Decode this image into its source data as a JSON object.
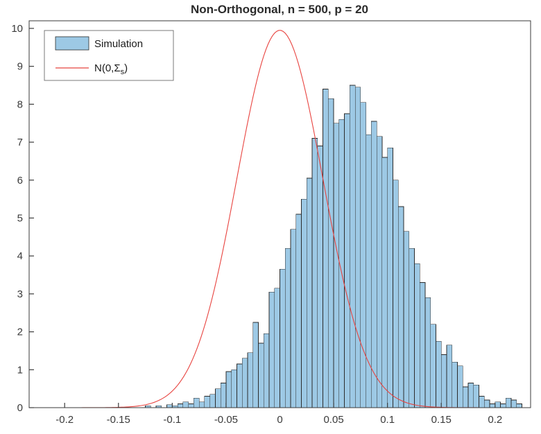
{
  "chart_data": {
    "type": "histogram+line",
    "title": "Non-Orthogonal, n = 500, p = 20",
    "xlabel": "",
    "ylabel": "",
    "xlim": [
      -0.233,
      0.233
    ],
    "ylim": [
      0,
      10.2
    ],
    "x_ticks": [
      -0.2,
      -0.15,
      -0.1,
      -0.05,
      0,
      0.05,
      0.1,
      0.15,
      0.2
    ],
    "x_tick_labels": [
      "-0.2",
      "-0.15",
      "-0.1",
      "-0.05",
      "0",
      "0.05",
      "0.1",
      "0.15",
      "0.2"
    ],
    "y_ticks": [
      0,
      1,
      2,
      3,
      4,
      5,
      6,
      7,
      8,
      9,
      10
    ],
    "y_tick_labels": [
      "0",
      "1",
      "2",
      "3",
      "4",
      "5",
      "6",
      "7",
      "8",
      "9",
      "10"
    ],
    "grid": false,
    "legend_position": "top-left",
    "histogram": {
      "series_name": "Simulation",
      "normalization": "pdf",
      "bin_start": -0.125,
      "bin_width": 0.005,
      "heights": [
        0.05,
        0.0,
        0.05,
        0.0,
        0.08,
        0.05,
        0.1,
        0.15,
        0.1,
        0.25,
        0.15,
        0.3,
        0.35,
        0.5,
        0.65,
        0.95,
        1.0,
        1.15,
        1.3,
        1.45,
        2.25,
        1.7,
        1.95,
        3.05,
        3.15,
        3.65,
        4.2,
        4.7,
        5.1,
        5.5,
        6.05,
        7.1,
        6.9,
        8.4,
        8.15,
        7.5,
        7.6,
        7.75,
        8.5,
        8.45,
        8.05,
        7.2,
        7.55,
        7.15,
        6.6,
        6.85,
        6.0,
        5.3,
        4.65,
        4.2,
        3.8,
        3.3,
        2.9,
        2.2,
        1.75,
        1.4,
        1.65,
        1.2,
        1.1,
        0.55,
        0.65,
        0.6,
        0.3,
        0.2,
        0.1,
        0.15,
        0.1,
        0.25,
        0.2,
        0.1
      ]
    },
    "normal_curve": {
      "series_name": "N(0,Sigma_s)",
      "mean": 0,
      "sd": 0.04,
      "peak": 9.95
    },
    "legend": [
      {
        "label": "Simulation",
        "marker": "patch"
      },
      {
        "prefix": "N(0,Σ",
        "sub": "s",
        "suffix": ")",
        "marker": "line"
      }
    ],
    "colors": {
      "bar_fill": "#9DC9E5",
      "bar_edge": "#2b2b2b",
      "curve": "#E8433F",
      "axis": "#3a3a3a",
      "legend_border": "#7a7a7a",
      "background": "#ffffff"
    }
  }
}
